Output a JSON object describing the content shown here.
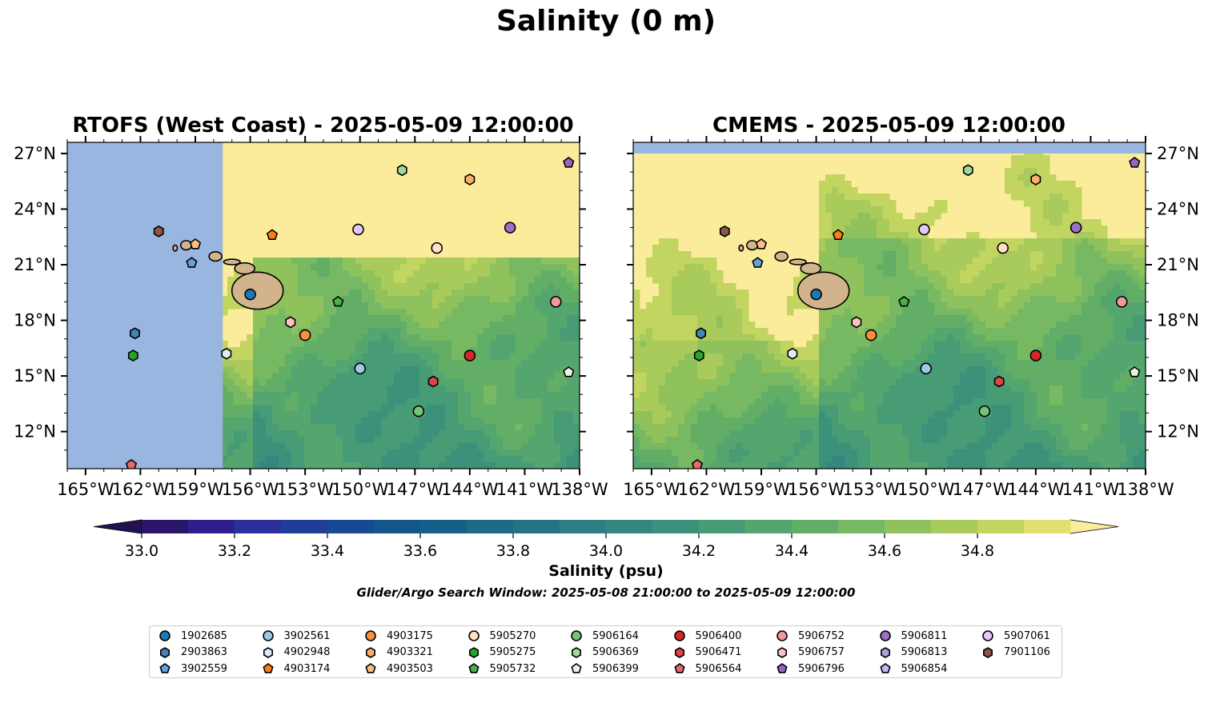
{
  "figure": {
    "title": "Salinity (0 m)",
    "colorbar_label": "Salinity (psu)",
    "search_window": "Glider/Argo Search Window: 2025-05-08 21:00:00 to 2025-05-09 12:00:00"
  },
  "panels": [
    {
      "title": "RTOFS (West Coast) - 2025-05-09 12:00:00",
      "model": "RTOFS",
      "data_coverage_lon_min": -157.5
    },
    {
      "title": "CMEMS - 2025-05-09 12:00:00",
      "model": "CMEMS",
      "data_coverage_lat_max": 27.0
    }
  ],
  "map_extent": {
    "lon": [
      -166,
      -138
    ],
    "lat": [
      10,
      27.6
    ]
  },
  "x_ticks": [
    "165°W",
    "162°W",
    "159°W",
    "156°W",
    "153°W",
    "150°W",
    "147°W",
    "144°W",
    "141°W",
    "138°W"
  ],
  "x_tick_values": [
    -165,
    -162,
    -159,
    -156,
    -153,
    -150,
    -147,
    -144,
    -141,
    -138
  ],
  "y_ticks": [
    "27°N",
    "24°N",
    "21°N",
    "18°N",
    "15°N",
    "12°N"
  ],
  "y_tick_values": [
    27,
    24,
    21,
    18,
    15,
    12
  ],
  "colorbar": {
    "levels": [
      33.0,
      33.1,
      33.2,
      33.3,
      33.4,
      33.5,
      33.6,
      33.7,
      33.8,
      33.9,
      34.0,
      34.1,
      34.2,
      34.3,
      34.4,
      34.5,
      34.6,
      34.7,
      34.8,
      34.9
    ],
    "colors": [
      "#29156a",
      "#2e1f8c",
      "#2b2f9b",
      "#213d98",
      "#174a92",
      "#12568c",
      "#156088",
      "#1b6a86",
      "#227484",
      "#2b7e82",
      "#33877f",
      "#3c917b",
      "#479b75",
      "#54a56e",
      "#63ae67",
      "#77b862",
      "#8fc25c",
      "#a8cb5b",
      "#c2d561",
      "#dfe070"
    ],
    "under_color": "#231252",
    "over_color": "#fbec9b",
    "tick_labels": [
      "33.0",
      "33.2",
      "33.4",
      "33.6",
      "33.8",
      "34.0",
      "34.2",
      "34.4",
      "34.6",
      "34.8"
    ],
    "tick_values": [
      33.0,
      33.2,
      33.4,
      33.6,
      33.8,
      34.0,
      34.2,
      34.4,
      34.6,
      34.8
    ]
  },
  "legend": [
    {
      "id": "1902685",
      "marker": "circle",
      "color": "#1f77b4"
    },
    {
      "id": "2903863",
      "marker": "hexagon",
      "color": "#4682b4"
    },
    {
      "id": "3902559",
      "marker": "pentagon",
      "color": "#5fa2dd"
    },
    {
      "id": "3902561",
      "marker": "circle",
      "color": "#9ecae1"
    },
    {
      "id": "4902948",
      "marker": "hexagon",
      "color": "#deebf7"
    },
    {
      "id": "4903174",
      "marker": "pentagon",
      "color": "#ff7f0e"
    },
    {
      "id": "4903175",
      "marker": "circle",
      "color": "#fd8d3c"
    },
    {
      "id": "4903321",
      "marker": "hexagon",
      "color": "#fdae6b"
    },
    {
      "id": "4903503",
      "marker": "pentagon",
      "color": "#fdbe85"
    },
    {
      "id": "5905270",
      "marker": "circle",
      "color": "#fde0c5"
    },
    {
      "id": "5905275",
      "marker": "hexagon",
      "color": "#2ca02c"
    },
    {
      "id": "5905732",
      "marker": "pentagon",
      "color": "#4daf4a"
    },
    {
      "id": "5906164",
      "marker": "circle",
      "color": "#74c476"
    },
    {
      "id": "5906369",
      "marker": "hexagon",
      "color": "#a1d99b"
    },
    {
      "id": "5906399",
      "marker": "pentagon",
      "color": "#e5f5e0"
    },
    {
      "id": "5906400",
      "marker": "circle",
      "color": "#d62728"
    },
    {
      "id": "5906471",
      "marker": "hexagon",
      "color": "#de4446"
    },
    {
      "id": "5906564",
      "marker": "pentagon",
      "color": "#e8676a"
    },
    {
      "id": "5906752",
      "marker": "circle",
      "color": "#f4999a"
    },
    {
      "id": "5906757",
      "marker": "hexagon",
      "color": "#fbc4c4"
    },
    {
      "id": "5906796",
      "marker": "pentagon",
      "color": "#9467bd"
    },
    {
      "id": "5906811",
      "marker": "circle",
      "color": "#9a6fc7"
    },
    {
      "id": "5906813",
      "marker": "hexagon",
      "color": "#b39ddb"
    },
    {
      "id": "5906854",
      "marker": "pentagon",
      "color": "#cdb5f0"
    },
    {
      "id": "5907061",
      "marker": "circle",
      "color": "#e2c9f7"
    },
    {
      "id": "7901106",
      "marker": "hexagon",
      "color": "#8c564b"
    }
  ],
  "floats": [
    {
      "id": "1902685",
      "lon": -156.0,
      "lat": 19.4
    },
    {
      "id": "2903863",
      "lon": -162.3,
      "lat": 17.3
    },
    {
      "id": "3902559",
      "lon": -159.2,
      "lat": 21.1
    },
    {
      "id": "3902561",
      "lon": -150.0,
      "lat": 15.4
    },
    {
      "id": "4902948",
      "lon": -157.3,
      "lat": 16.2
    },
    {
      "id": "4903174",
      "lon": -154.8,
      "lat": 22.6
    },
    {
      "id": "4903175",
      "lon": -153.0,
      "lat": 17.2
    },
    {
      "id": "4903321",
      "lon": -144.0,
      "lat": 25.6
    },
    {
      "id": "4903503",
      "lon": -159.0,
      "lat": 22.1
    },
    {
      "id": "5905270",
      "lon": -145.8,
      "lat": 21.9
    },
    {
      "id": "5905275",
      "lon": -162.4,
      "lat": 16.1
    },
    {
      "id": "5905732",
      "lon": -151.2,
      "lat": 19.0
    },
    {
      "id": "5906164",
      "lon": -146.8,
      "lat": 13.1
    },
    {
      "id": "5906369",
      "lon": -147.7,
      "lat": 26.1
    },
    {
      "id": "5906399",
      "lon": -138.6,
      "lat": 15.2
    },
    {
      "id": "5906400",
      "lon": -144.0,
      "lat": 16.1
    },
    {
      "id": "5906471",
      "lon": -146.0,
      "lat": 14.7
    },
    {
      "id": "5906564",
      "lon": -162.5,
      "lat": 10.2
    },
    {
      "id": "5906752",
      "lon": -139.3,
      "lat": 19.0
    },
    {
      "id": "5906757",
      "lon": -153.8,
      "lat": 17.9
    },
    {
      "id": "5906796",
      "lon": -138.6,
      "lat": 26.5
    },
    {
      "id": "5906811",
      "lon": -141.8,
      "lat": 23.0
    },
    {
      "id": "5907061",
      "lon": -150.1,
      "lat": 22.9
    },
    {
      "id": "7901106",
      "lon": -161.0,
      "lat": 22.8
    }
  ]
}
